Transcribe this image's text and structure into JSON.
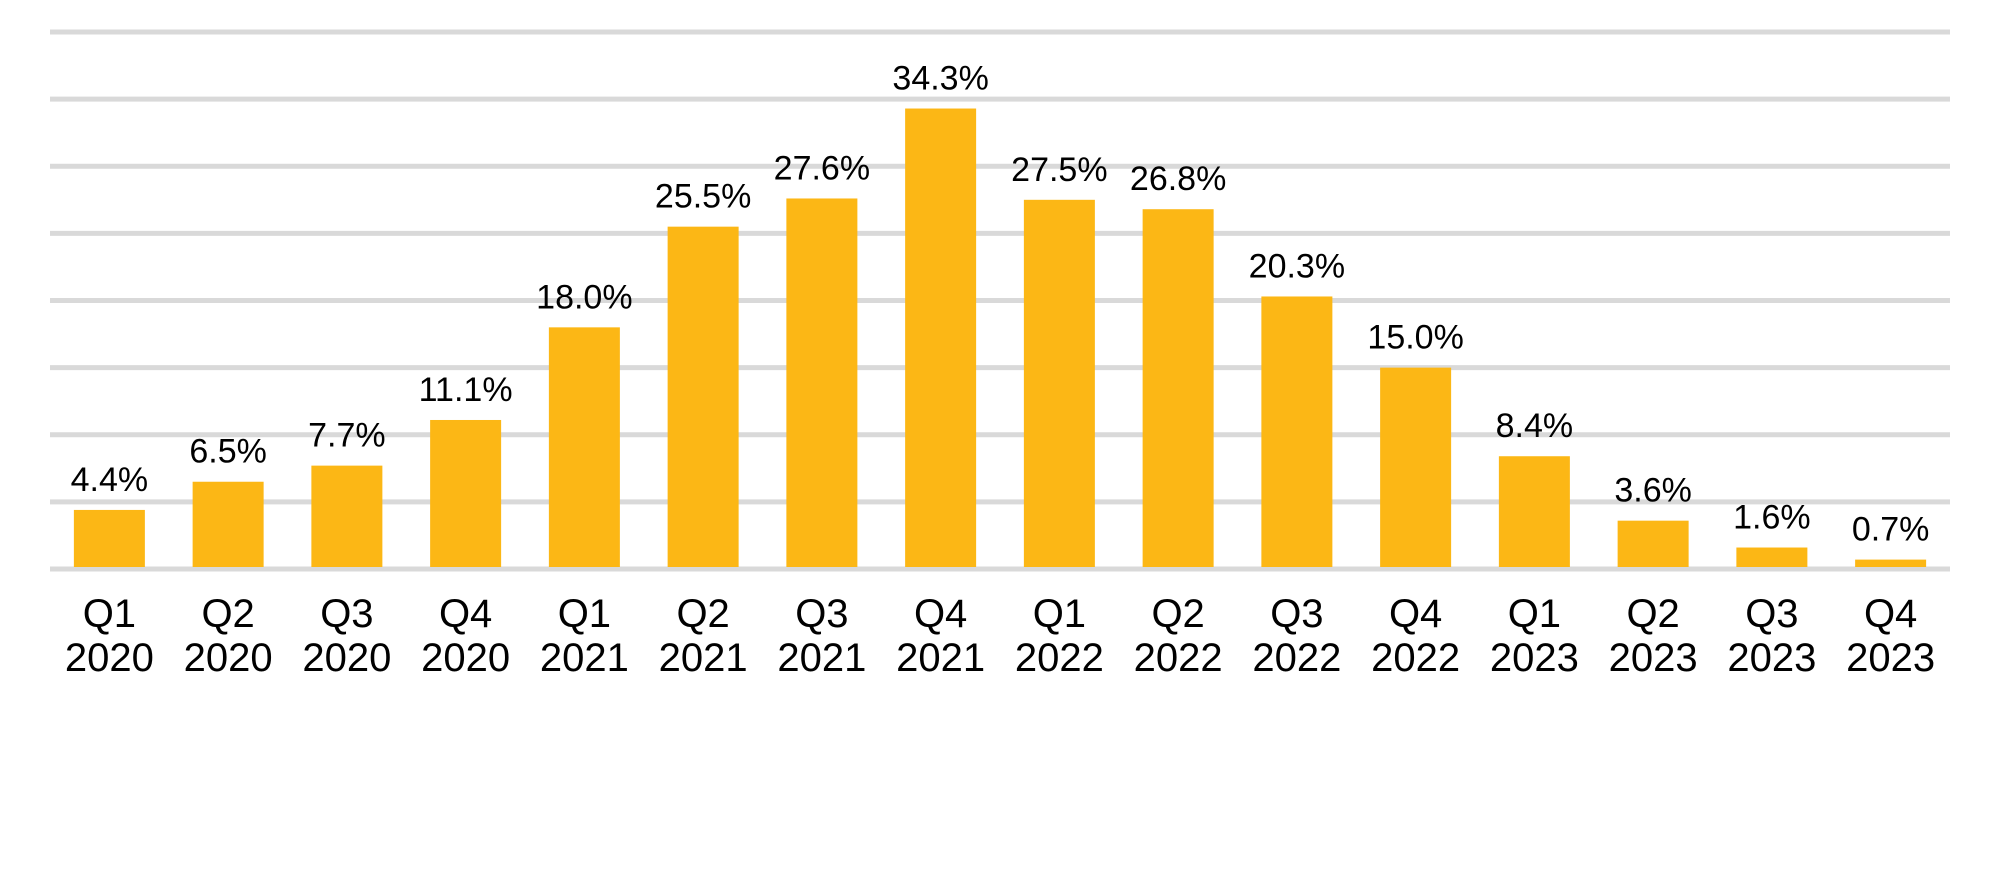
{
  "chart_data": {
    "type": "bar",
    "title": "",
    "xlabel": "",
    "ylabel": "",
    "ylim": [
      0,
      40
    ],
    "grid": true,
    "gridline_step": 5,
    "bar_color": "#FCB715",
    "grid_color": "#D9D9D9",
    "categories": [
      {
        "q": "Q1",
        "y": "2020"
      },
      {
        "q": "Q2",
        "y": "2020"
      },
      {
        "q": "Q3",
        "y": "2020"
      },
      {
        "q": "Q4",
        "y": "2020"
      },
      {
        "q": "Q1",
        "y": "2021"
      },
      {
        "q": "Q2",
        "y": "2021"
      },
      {
        "q": "Q3",
        "y": "2021"
      },
      {
        "q": "Q4",
        "y": "2021"
      },
      {
        "q": "Q1",
        "y": "2022"
      },
      {
        "q": "Q2",
        "y": "2022"
      },
      {
        "q": "Q3",
        "y": "2022"
      },
      {
        "q": "Q4",
        "y": "2022"
      },
      {
        "q": "Q1",
        "y": "2023"
      },
      {
        "q": "Q2",
        "y": "2023"
      },
      {
        "q": "Q3",
        "y": "2023"
      },
      {
        "q": "Q4",
        "y": "2023"
      }
    ],
    "values": [
      4.4,
      6.5,
      7.7,
      11.1,
      18.0,
      25.5,
      27.6,
      34.3,
      27.5,
      26.8,
      20.3,
      15.0,
      8.4,
      3.6,
      1.6,
      0.7
    ],
    "labels": [
      "4.4%",
      "6.5%",
      "7.7%",
      "11.1%",
      "18.0%",
      "25.5%",
      "27.6%",
      "34.3%",
      "27.5%",
      "26.8%",
      "20.3%",
      "15.0%",
      "8.4%",
      "3.6%",
      "1.6%",
      "0.7%"
    ]
  }
}
